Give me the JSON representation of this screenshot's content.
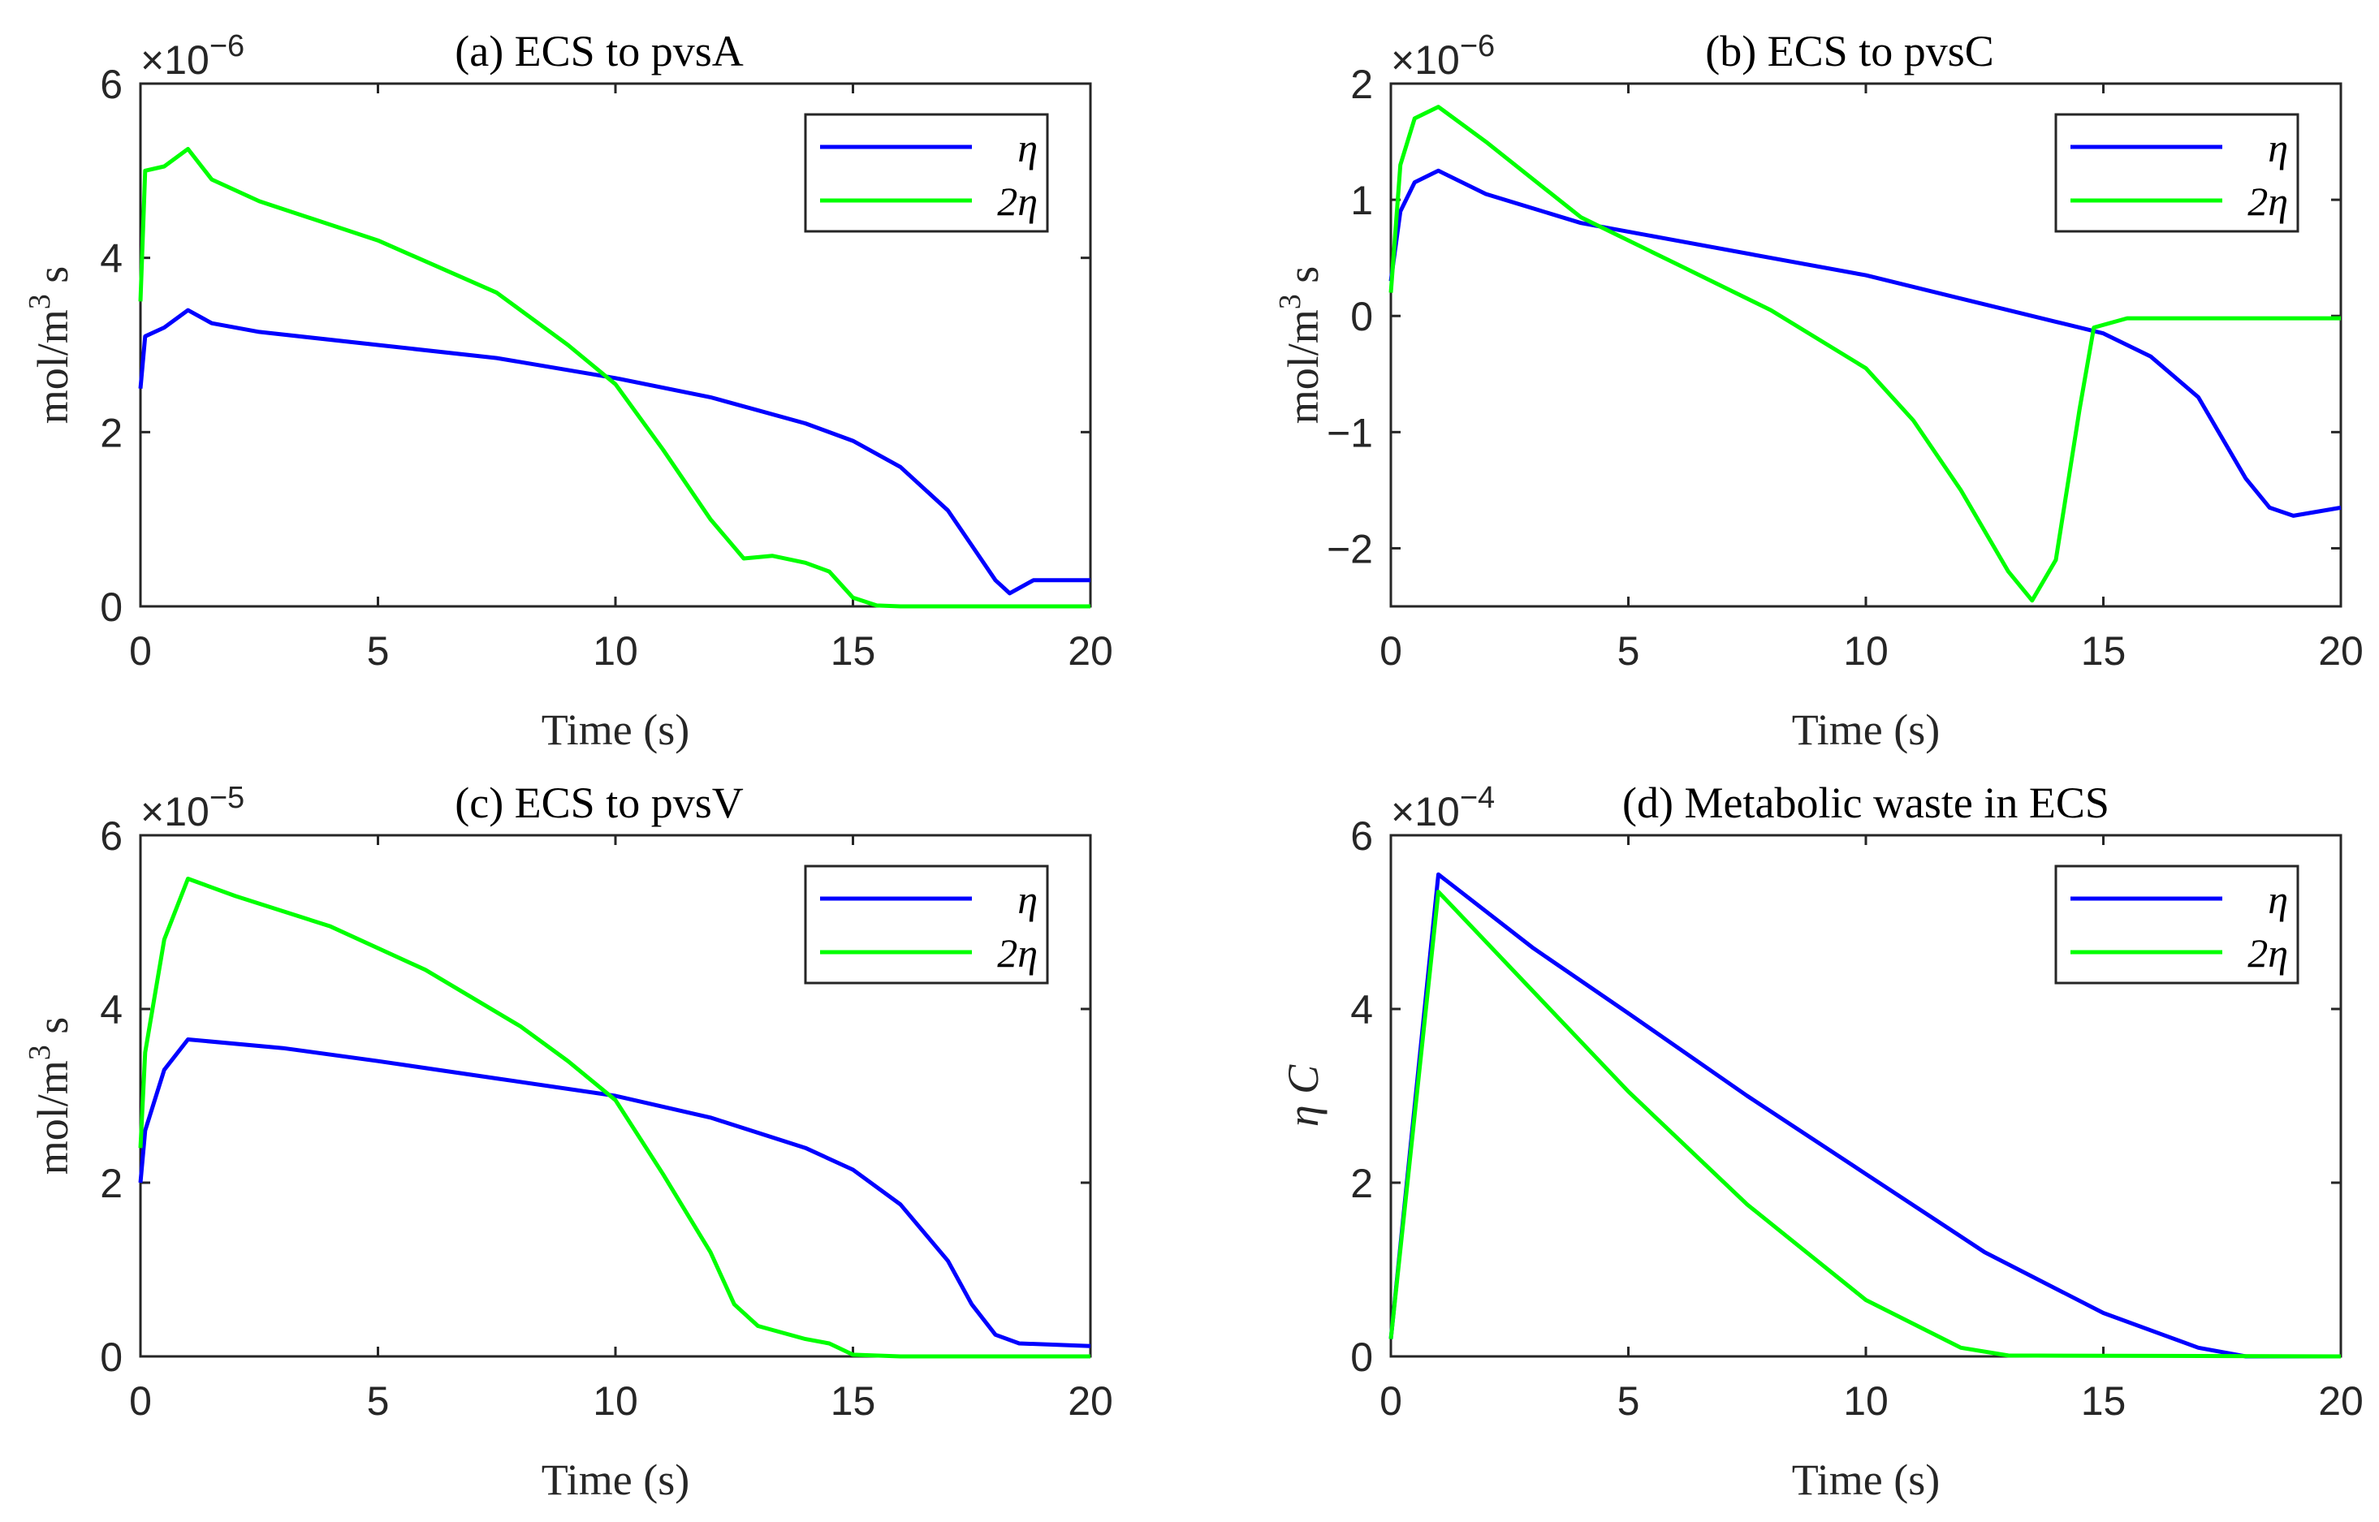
{
  "chart_data": [
    {
      "type": "line",
      "title": "(a) ECS to pvsA",
      "xlabel": "Time (s)",
      "ylabel": "mol/m^3 s",
      "ylabel_base": "mol/m",
      "ylabel_sup": "3",
      "ylabel_tail": " s",
      "exponent_base": "×10",
      "exponent": "−6",
      "xlim": [
        0,
        20
      ],
      "ylim": [
        0,
        6
      ],
      "xticks": [
        "0",
        "5",
        "10",
        "15",
        "20"
      ],
      "yticks": [
        "0",
        "2",
        "4",
        "6"
      ],
      "legend_placement": "top-right",
      "series": [
        {
          "name": "η",
          "color": "#0000ff",
          "x": [
            0,
            0.1,
            0.5,
            1,
            1.5,
            2.5,
            5,
            7.5,
            10,
            12,
            14,
            15,
            16,
            17,
            17.5,
            18,
            18.3,
            18.8,
            20
          ],
          "y": [
            2.5,
            3.1,
            3.2,
            3.4,
            3.25,
            3.15,
            3.0,
            2.85,
            2.62,
            2.4,
            2.1,
            1.9,
            1.6,
            1.1,
            0.7,
            0.3,
            0.15,
            0.3,
            0.3
          ]
        },
        {
          "name": "2η",
          "color": "#00ff00",
          "x": [
            0,
            0.1,
            0.5,
            1,
            1.5,
            2.5,
            5,
            7.5,
            9,
            10,
            11,
            12,
            12.7,
            13.3,
            14,
            14.5,
            15,
            15.5,
            16,
            20
          ],
          "y": [
            3.5,
            5.0,
            5.05,
            5.25,
            4.9,
            4.65,
            4.2,
            3.6,
            3.0,
            2.55,
            1.8,
            1.0,
            0.55,
            0.58,
            0.5,
            0.4,
            0.1,
            0.01,
            0,
            0
          ]
        }
      ]
    },
    {
      "type": "line",
      "title": "(b) ECS to pvsC",
      "xlabel": "Time (s)",
      "ylabel": "mol/m^3 s",
      "ylabel_base": "mol/m",
      "ylabel_sup": "3",
      "ylabel_tail": " s",
      "exponent_base": "×10",
      "exponent": "−6",
      "xlim": [
        0,
        20
      ],
      "ylim": [
        -2.5,
        2
      ],
      "xticks": [
        "0",
        "5",
        "10",
        "15",
        "20"
      ],
      "yticks": [
        "−2",
        "−1",
        "0",
        "1",
        "2"
      ],
      "ytick_values": [
        -2,
        -1,
        0,
        1,
        2
      ],
      "legend_placement": "top-right",
      "series": [
        {
          "name": "η",
          "color": "#0000ff",
          "x": [
            0,
            0.2,
            0.5,
            1,
            2,
            4,
            6,
            8,
            10,
            12,
            14,
            15,
            16,
            17,
            18,
            18.5,
            19,
            20
          ],
          "y": [
            0.3,
            0.9,
            1.15,
            1.25,
            1.05,
            0.8,
            0.65,
            0.5,
            0.35,
            0.15,
            -0.05,
            -0.15,
            -0.35,
            -0.7,
            -1.4,
            -1.65,
            -1.72,
            -1.65
          ]
        },
        {
          "name": "2η",
          "color": "#00ff00",
          "x": [
            0,
            0.2,
            0.5,
            1,
            2,
            4,
            6,
            8,
            10,
            11,
            12,
            13,
            13.5,
            14,
            14.5,
            14.8,
            15.5,
            20
          ],
          "y": [
            0.2,
            1.3,
            1.7,
            1.8,
            1.5,
            0.85,
            0.45,
            0.05,
            -0.45,
            -0.9,
            -1.5,
            -2.2,
            -2.45,
            -2.1,
            -0.8,
            -0.1,
            -0.02,
            -0.02
          ]
        }
      ]
    },
    {
      "type": "line",
      "title": "(c) ECS to pvsV",
      "xlabel": "Time (s)",
      "ylabel": "mol/m^3 s",
      "ylabel_base": "mol/m",
      "ylabel_sup": "3",
      "ylabel_tail": " s",
      "exponent_base": "×10",
      "exponent": "−5",
      "xlim": [
        0,
        20
      ],
      "ylim": [
        0,
        6
      ],
      "xticks": [
        "0",
        "5",
        "10",
        "15",
        "20"
      ],
      "yticks": [
        "0",
        "2",
        "4",
        "6"
      ],
      "legend_placement": "top-right",
      "series": [
        {
          "name": "η",
          "color": "#0000ff",
          "x": [
            0,
            0.1,
            0.5,
            1,
            3,
            5,
            7.5,
            10,
            12,
            14,
            15,
            16,
            17,
            17.5,
            18,
            18.5,
            20
          ],
          "y": [
            2.0,
            2.6,
            3.3,
            3.65,
            3.55,
            3.4,
            3.2,
            3.0,
            2.75,
            2.4,
            2.15,
            1.75,
            1.1,
            0.6,
            0.25,
            0.15,
            0.12
          ]
        },
        {
          "name": "2η",
          "color": "#00ff00",
          "x": [
            0,
            0.1,
            0.5,
            1,
            2,
            4,
            6,
            8,
            9,
            10,
            11,
            12,
            12.5,
            13,
            14,
            14.5,
            15,
            16,
            20
          ],
          "y": [
            2.4,
            3.5,
            4.8,
            5.5,
            5.3,
            4.95,
            4.45,
            3.8,
            3.4,
            2.95,
            2.1,
            1.2,
            0.6,
            0.35,
            0.2,
            0.15,
            0.02,
            0,
            0
          ]
        }
      ]
    },
    {
      "type": "line",
      "title": "(d) Metabolic waste in ECS",
      "xlabel": "Time (s)",
      "ylabel": "η C",
      "ylabel_base": "η C",
      "ylabel_sup": "",
      "ylabel_tail": "",
      "exponent_base": "×10",
      "exponent": "−4",
      "xlim": [
        0,
        20
      ],
      "ylim": [
        0,
        6
      ],
      "xticks": [
        "0",
        "5",
        "10",
        "15",
        "20"
      ],
      "yticks": [
        "0",
        "2",
        "4",
        "6"
      ],
      "legend_placement": "top-right",
      "series": [
        {
          "name": "η",
          "color": "#0000ff",
          "x": [
            0,
            1,
            3,
            5,
            7.5,
            10,
            12.5,
            15,
            17,
            18,
            20
          ],
          "y": [
            0.2,
            5.55,
            4.7,
            3.95,
            3.0,
            2.1,
            1.2,
            0.5,
            0.1,
            0,
            0
          ]
        },
        {
          "name": "2η",
          "color": "#00ff00",
          "x": [
            0,
            1,
            3,
            5,
            7.5,
            10,
            12,
            13,
            20
          ],
          "y": [
            0.2,
            5.35,
            4.2,
            3.05,
            1.75,
            0.65,
            0.1,
            0.01,
            0
          ]
        }
      ]
    }
  ]
}
